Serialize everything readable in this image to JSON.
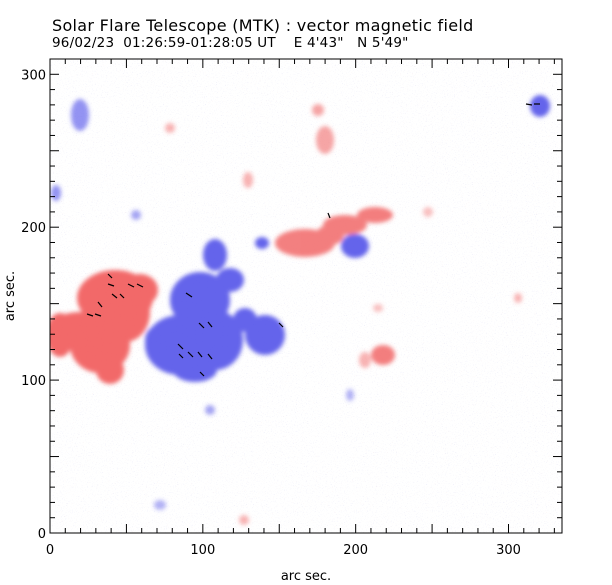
{
  "header": {
    "title": "Solar Flare Telescope (MTK) : vector magnetic field",
    "subtitle": "96/02/23  01:26:59-01:28:05 UT    E 4'43\"   N 5'49\""
  },
  "axes": {
    "x_label": "arc sec.",
    "y_label": "arc sec.",
    "x_range": [
      0,
      335
    ],
    "y_range": [
      0,
      310
    ],
    "x_ticks": [
      "0",
      "100",
      "200",
      "300"
    ],
    "x_tick_values": [
      0,
      100,
      200,
      300
    ],
    "y_ticks": [
      "0",
      "100",
      "200",
      "300"
    ],
    "y_tick_values": [
      0,
      100,
      200,
      300
    ]
  },
  "colors": {
    "positive_polarity": "#f05050",
    "negative_polarity": "#4a4ae8",
    "background": "#ffffff",
    "axes": "#000000"
  },
  "image": {
    "description_icon": "magnetogram-image"
  }
}
